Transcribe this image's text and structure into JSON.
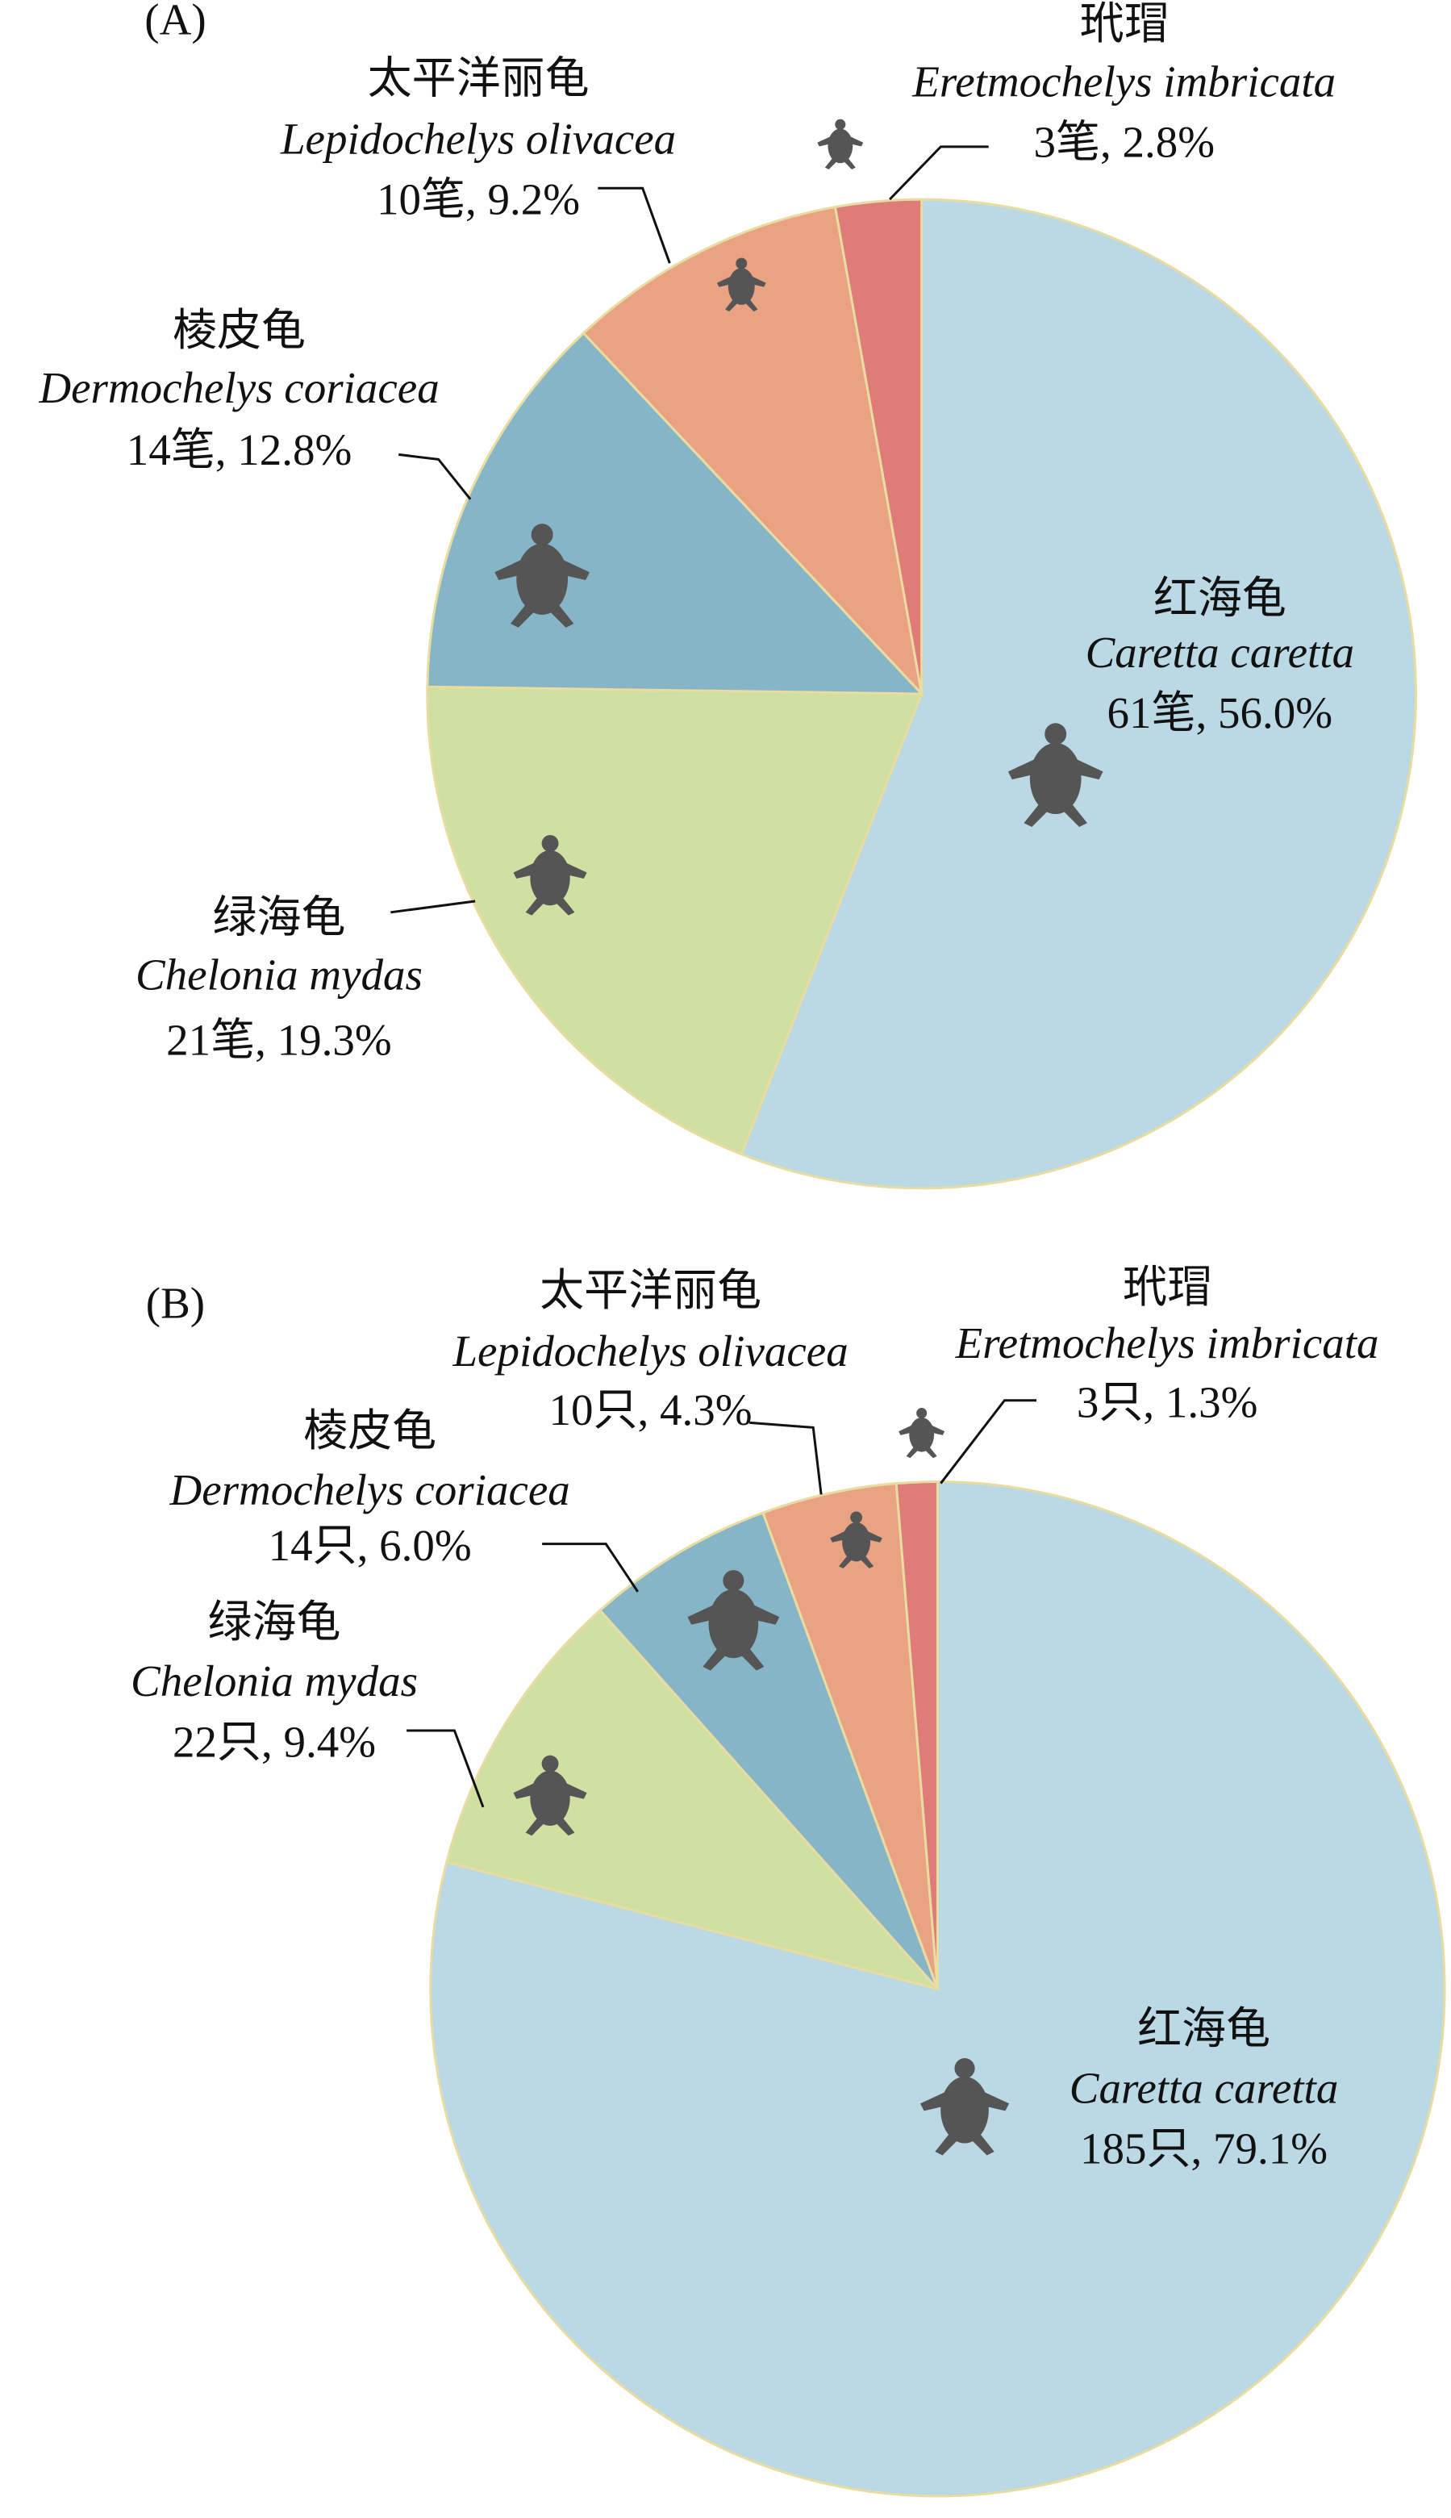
{
  "chart_data": [
    {
      "type": "pie",
      "title": "(A)",
      "categories": [
        "红海龟",
        "绿海龟",
        "棱皮龟",
        "太平洋丽龟",
        "玳瑁"
      ],
      "scientific_names": [
        "Caretta caretta",
        "Chelonia mydas",
        "Dermochelys coriacea",
        "Lepidochelys olivacea",
        "Eretmochelys imbricata"
      ],
      "values": [
        56.0,
        19.3,
        12.8,
        9.2,
        2.8
      ],
      "value_labels": [
        "61笔, 56.0%",
        "21笔, 19.3%",
        "14笔, 12.8%",
        "10笔, 9.2%",
        "3笔, 2.8%"
      ],
      "colors": [
        "#bad9e4",
        "#d0e0a2",
        "#86b5c7",
        "#e9a282",
        "#df7b79"
      ]
    },
    {
      "type": "pie",
      "title": "(B)",
      "categories": [
        "红海龟",
        "绿海龟",
        "棱皮龟",
        "太平洋丽龟",
        "玳瑁"
      ],
      "scientific_names": [
        "Caretta caretta",
        "Chelonia mydas",
        "Dermochelys coriacea",
        "Lepidochelys olivacea",
        "Eretmochelys imbricata"
      ],
      "values": [
        79.1,
        9.4,
        6.0,
        4.3,
        1.3
      ],
      "value_labels": [
        "185只, 79.1%",
        "22只, 9.4%",
        "14只, 6.0%",
        "10只, 4.3%",
        "3只, 1.3%"
      ],
      "colors": [
        "#bad9e4",
        "#d0e0a2",
        "#86b5c7",
        "#e9a282",
        "#df7b79"
      ]
    }
  ]
}
